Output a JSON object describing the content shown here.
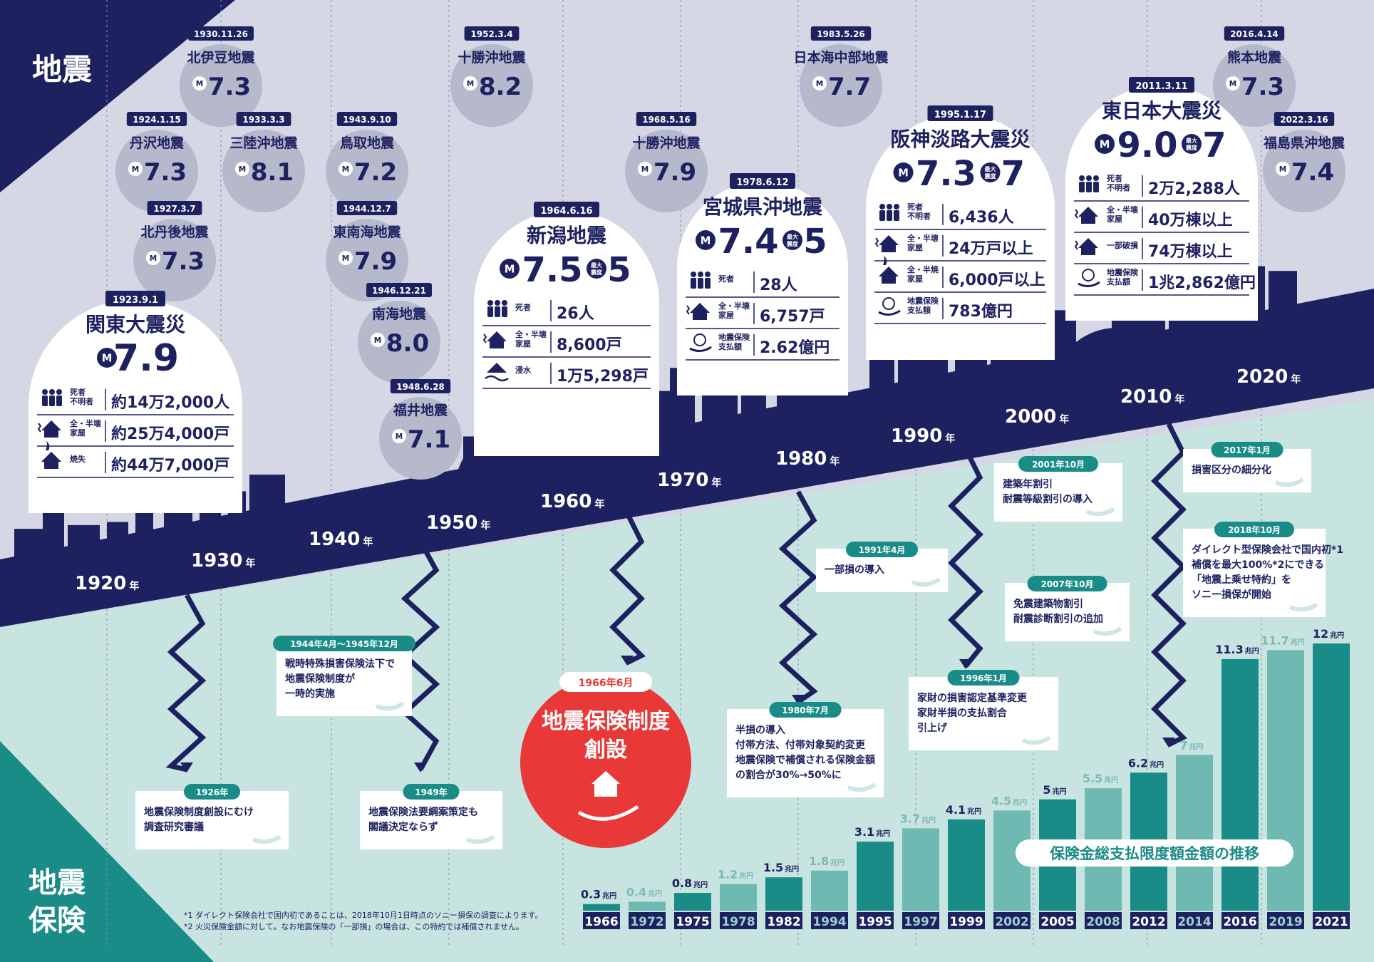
{
  "colors": {
    "navy": "#1d2160",
    "teal": "#1a8c87",
    "teal_light": "#6fb9b3",
    "mint_bg": "#c8e4e1",
    "lavender_bg": "#d6d7e4",
    "bubble_grey": "#b6b8cc",
    "red": "#e83838"
  },
  "header": {
    "jishin_label": "地震",
    "hoken_label_1": "地震",
    "hoken_label_2": "保険"
  },
  "timeline": {
    "decade_labels": [
      "1920",
      "1930",
      "1940",
      "1950",
      "1960",
      "1970",
      "1980",
      "1990",
      "2000",
      "2010",
      "2020"
    ],
    "year_suffix": "年",
    "m_symbol": "M",
    "max_intensity_label": "最大震度"
  },
  "small_quakes": [
    {
      "date": "1930.11.26",
      "name": "北伊豆地震",
      "magnitude": "7.3"
    },
    {
      "date": "1924.1.15",
      "name": "丹沢地震",
      "magnitude": "7.3"
    },
    {
      "date": "1933.3.3",
      "name": "三陸沖地震",
      "magnitude": "8.1"
    },
    {
      "date": "1927.3.7",
      "name": "北丹後地震",
      "magnitude": "7.3"
    },
    {
      "date": "1943.9.10",
      "name": "鳥取地震",
      "magnitude": "7.2"
    },
    {
      "date": "1944.12.7",
      "name": "東南海地震",
      "magnitude": "7.9"
    },
    {
      "date": "1946.12.21",
      "name": "南海地震",
      "magnitude": "8.0"
    },
    {
      "date": "1948.6.28",
      "name": "福井地震",
      "magnitude": "7.1"
    },
    {
      "date": "1952.3.4",
      "name": "十勝沖地震",
      "magnitude": "8.2"
    },
    {
      "date": "1968.5.16",
      "name": "十勝沖地震",
      "magnitude": "7.9"
    },
    {
      "date": "1983.5.26",
      "name": "日本海中部地震",
      "magnitude": "7.7"
    },
    {
      "date": "2016.4.14",
      "name": "熊本地震",
      "magnitude": "7.3"
    },
    {
      "date": "2022.3.16",
      "name": "福島県沖地震",
      "magnitude": "7.4"
    }
  ],
  "big_quakes": [
    {
      "date": "1923.9.1",
      "name": "関東大震災",
      "magnitude": "7.9",
      "intensity": "",
      "rows": [
        {
          "icon": "people-icon",
          "label": "死者\n不明者",
          "value": "約14万2,000人"
        },
        {
          "icon": "collapsed-house-icon",
          "label": "全・半壊\n家屋",
          "value": "約25万4,000戸"
        },
        {
          "icon": "burning-house-icon",
          "label": "焼失",
          "value": "約44万7,000戸"
        }
      ]
    },
    {
      "date": "1964.6.16",
      "name": "新潟地震",
      "magnitude": "7.5",
      "intensity": "5",
      "rows": [
        {
          "icon": "people-icon",
          "label": "死者",
          "value": "26人"
        },
        {
          "icon": "collapsed-house-icon",
          "label": "全・半壊\n家屋",
          "value": "8,600戸"
        },
        {
          "icon": "flooded-house-icon",
          "label": "浸水",
          "value": "1万5,298戸"
        }
      ]
    },
    {
      "date": "1978.6.12",
      "name": "宮城県沖地震",
      "magnitude": "7.4",
      "intensity": "5",
      "rows": [
        {
          "icon": "people-icon",
          "label": "死者",
          "value": "28人"
        },
        {
          "icon": "collapsed-house-icon",
          "label": "全・半壊\n家屋",
          "value": "6,757戸"
        },
        {
          "icon": "payment-hand-icon",
          "label": "地震保険\n支払額",
          "value": "2.62億円"
        }
      ]
    },
    {
      "date": "1995.1.17",
      "name": "阪神淡路大震災",
      "magnitude": "7.3",
      "intensity": "7",
      "rows": [
        {
          "icon": "people-icon",
          "label": "死者\n不明者",
          "value": "6,436人"
        },
        {
          "icon": "collapsed-house-icon",
          "label": "全・半壊\n家屋",
          "value": "24万戸以上"
        },
        {
          "icon": "burning-house-icon",
          "label": "全・半焼\n家屋",
          "value": "6,000戸以上"
        },
        {
          "icon": "payment-hand-icon",
          "label": "地震保険\n支払額",
          "value": "783億円"
        }
      ]
    },
    {
      "date": "2011.3.11",
      "name": "東日本大震災",
      "magnitude": "9.0",
      "intensity": "7",
      "rows": [
        {
          "icon": "people-icon",
          "label": "死者\n不明者",
          "value": "2万2,288人"
        },
        {
          "icon": "collapsed-house-icon",
          "label": "全・半壊\n家屋",
          "value": "40万棟以上"
        },
        {
          "icon": "damaged-house-icon",
          "label": "一部破損",
          "value": "74万棟以上"
        },
        {
          "icon": "payment-hand-icon",
          "label": "地震保険\n支払額",
          "value": "1兆2,862億円"
        }
      ]
    }
  ],
  "insurance_events": [
    {
      "date": "1926年",
      "lines": [
        "地震保険制度創設にむけ",
        "調査研究審議"
      ]
    },
    {
      "date": "1944年4月～1945年12月",
      "lines": [
        "戦時特殊損害保険法下で",
        "地震保険制度が",
        "一時的実施"
      ]
    },
    {
      "date": "1949年",
      "lines": [
        "地震保険法要綱案策定も",
        "閣議決定ならず"
      ]
    },
    {
      "date": "1980年7月",
      "lines": [
        "半損の導入",
        "付帯方法、付帯対象契約変更",
        "地震保険で補償される保険金額",
        "の割合が30%→50%に"
      ]
    },
    {
      "date": "1991年4月",
      "lines": [
        "一部損の導入"
      ]
    },
    {
      "date": "1996年1月",
      "lines": [
        "家財の損害認定基準変更",
        "家財半損の支払割合",
        "引上げ"
      ]
    },
    {
      "date": "2001年10月",
      "lines": [
        "建築年割引",
        "耐震等級割引の導入"
      ]
    },
    {
      "date": "2007年10月",
      "lines": [
        "免震建築物割引",
        "耐震診断割引の追加"
      ]
    },
    {
      "date": "2017年1月",
      "lines": [
        "損害区分の細分化"
      ]
    },
    {
      "date": "2018年10月",
      "lines": [
        "ダイレクト型保険会社で国内初*1",
        "補償を最大100%*2にできる",
        "「地震上乗せ特約」を",
        "ソニー損保が開始"
      ]
    }
  ],
  "founding": {
    "date": "1966年6月",
    "line1": "地震保険制度",
    "line2": "創設"
  },
  "footnotes": [
    "*1 ダイレクト保険会社で国内初であることは、2018年10月1日時点のソニー損保の調査によります。",
    "*2 火災保険金額に対して。なお地震保険の「一部損」の場合は、この特約では補償されません。"
  ],
  "chart_data": {
    "type": "bar",
    "title": "保険金総支払限度額金額の推移",
    "unit": "兆円",
    "categories": [
      "1966",
      "1972",
      "1975",
      "1978",
      "1982",
      "1994",
      "1995",
      "1997",
      "1999",
      "2002",
      "2005",
      "2008",
      "2012",
      "2014",
      "2016",
      "2019",
      "2021"
    ],
    "values": [
      0.3,
      0.4,
      0.8,
      1.2,
      1.5,
      1.8,
      3.1,
      3.7,
      4.1,
      4.5,
      5,
      5.5,
      6.2,
      7,
      11.3,
      11.7,
      12
    ],
    "value_labels": [
      "0.3",
      "0.4",
      "0.8",
      "1.2",
      "1.5",
      "1.8",
      "3.1",
      "3.7",
      "4.1",
      "4.5",
      "5",
      "5.5",
      "6.2",
      "7",
      "11.3",
      "11.7",
      "12"
    ],
    "ylim": [
      0,
      12
    ]
  }
}
